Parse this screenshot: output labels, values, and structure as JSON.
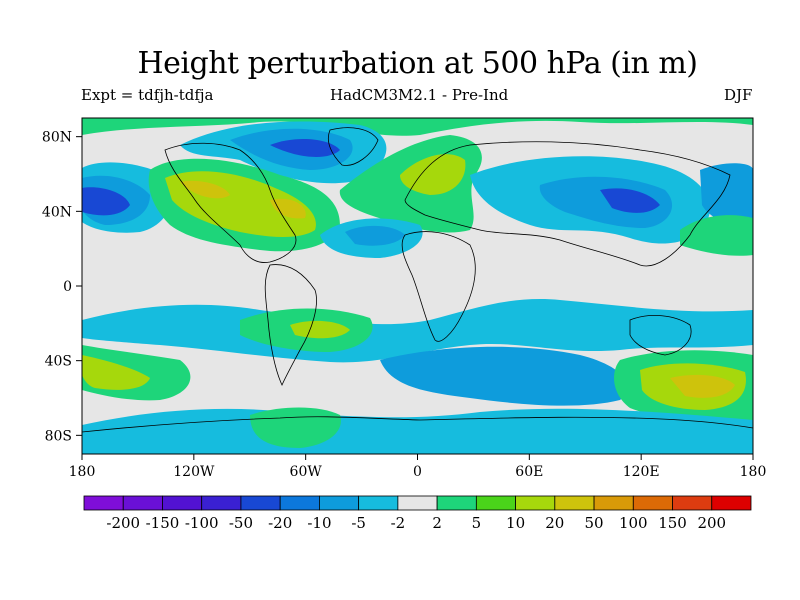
{
  "title": "Height perturbation at 500 hPa (in m)",
  "subtitle_left": "Expt = tdfjh-tdfja",
  "subtitle_center": "HadCM3M2.1 - Pre-Ind",
  "subtitle_right": "DJF",
  "map": {
    "lat_ticks": [
      "80N",
      "40N",
      "0",
      "40S",
      "80S"
    ],
    "lon_ticks": [
      "180",
      "120W",
      "60W",
      "0",
      "60E",
      "120E",
      "180"
    ],
    "background_color": "#e6e6e6"
  },
  "colorbar": {
    "labels": [
      "-200",
      "-150",
      "-100",
      "-50",
      "-20",
      "-10",
      "-5",
      "-2",
      "2",
      "5",
      "10",
      "20",
      "50",
      "100",
      "150",
      "200"
    ],
    "colors": [
      "#7f0ed9",
      "#6a10d6",
      "#5212d2",
      "#3a20d2",
      "#1848d4",
      "#0c78dc",
      "#0e9cdc",
      "#16bcde",
      "#e6e6e6",
      "#1ed57a",
      "#4ad41a",
      "#a6d80c",
      "#cec30c",
      "#d99a08",
      "#dc6a06",
      "#dd3c10",
      "#dd0000"
    ]
  }
}
